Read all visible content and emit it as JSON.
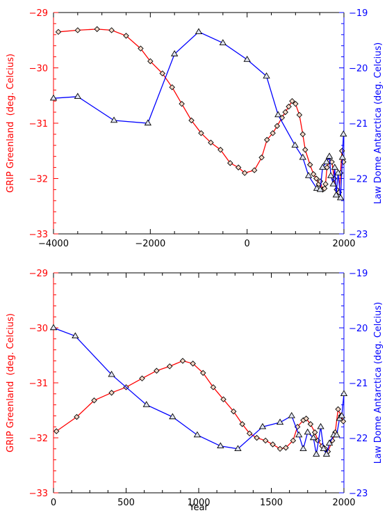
{
  "chart_data": [
    {
      "type": "line",
      "xlabel": "",
      "xlim": [
        -4000,
        2000
      ],
      "x_ticks": [
        -4000,
        -2000,
        0,
        2000
      ],
      "y_left": {
        "label": "GRIP Greenland  (deg. Celcius)",
        "lim": [
          -33,
          -29
        ],
        "ticks": [
          -33,
          -32,
          -31,
          -30,
          -29
        ],
        "color": "#ff0000"
      },
      "y_right": {
        "label": "Law Dome Antarctica (deg. Celcius)",
        "lim": [
          -23,
          -19
        ],
        "ticks": [
          -23,
          -22,
          -21,
          -20,
          -19
        ],
        "color": "#0000ff"
      },
      "series": [
        {
          "axis": "left",
          "color": "#ff0000",
          "marker": "diamond",
          "x": [
            -3900,
            -3500,
            -3100,
            -2800,
            -2500,
            -2200,
            -2000,
            -1750,
            -1550,
            -1350,
            -1150,
            -950,
            -750,
            -550,
            -350,
            -180,
            -50,
            150,
            300,
            410,
            530,
            620,
            720,
            790,
            860,
            930,
            1000,
            1080,
            1150,
            1200,
            1300,
            1370,
            1430,
            1480,
            1510,
            1560,
            1600,
            1620,
            1650,
            1700,
            1750,
            1800,
            1850,
            1900,
            1930,
            1960,
            1990
          ],
          "y": [
            -29.35,
            -29.32,
            -29.3,
            -29.32,
            -29.42,
            -29.65,
            -29.88,
            -30.1,
            -30.35,
            -30.65,
            -30.95,
            -31.18,
            -31.35,
            -31.48,
            -31.72,
            -31.8,
            -31.9,
            -31.85,
            -31.62,
            -31.3,
            -31.18,
            -31.05,
            -30.9,
            -30.8,
            -30.7,
            -30.6,
            -30.65,
            -30.85,
            -31.2,
            -31.48,
            -31.75,
            -31.92,
            -32.0,
            -32.1,
            -32.05,
            -32.2,
            -32.18,
            -32.1,
            -31.8,
            -31.68,
            -31.7,
            -32.0,
            -32.2,
            -32.25,
            -31.9,
            -31.5,
            -31.7
          ]
        },
        {
          "axis": "right",
          "color": "#0000ff",
          "marker": "triangle",
          "x": [
            -4000,
            -3500,
            -2750,
            -2050,
            -1500,
            -1000,
            -500,
            0,
            400,
            640,
            990,
            1150,
            1270,
            1440,
            1510,
            1560,
            1640,
            1700,
            1730,
            1780,
            1810,
            1840,
            1880,
            1930,
            1970,
            1990
          ],
          "y": [
            -20.55,
            -20.52,
            -20.95,
            -21.0,
            -19.75,
            -19.35,
            -19.55,
            -19.85,
            -20.15,
            -20.85,
            -21.4,
            -21.62,
            -21.95,
            -22.18,
            -22.2,
            -21.8,
            -21.7,
            -21.6,
            -21.95,
            -22.1,
            -21.8,
            -22.3,
            -21.9,
            -22.35,
            -21.62,
            -21.2
          ]
        }
      ]
    },
    {
      "type": "line",
      "xlabel": "Year",
      "xlim": [
        0,
        2000
      ],
      "x_ticks": [
        0,
        500,
        1000,
        1500,
        2000
      ],
      "y_left": {
        "label": "GRIP Greenland  (deg. Celcius)",
        "lim": [
          -33,
          -29
        ],
        "ticks": [
          -33,
          -32,
          -31,
          -30,
          -29
        ],
        "color": "#ff0000"
      },
      "y_right": {
        "label": "Law Dome Antarctica (deg. Celcius)",
        "lim": [
          -23,
          -19
        ],
        "ticks": [
          -23,
          -22,
          -21,
          -20,
          -19
        ],
        "color": "#0000ff"
      },
      "series": [
        {
          "axis": "left",
          "color": "#ff0000",
          "marker": "diamond",
          "x": [
            20,
            160,
            280,
            400,
            500,
            610,
            710,
            800,
            890,
            960,
            1030,
            1100,
            1170,
            1240,
            1300,
            1350,
            1400,
            1460,
            1510,
            1560,
            1600,
            1650,
            1680,
            1720,
            1740,
            1770,
            1800,
            1820,
            1850,
            1870,
            1890,
            1920,
            1940,
            1960,
            1980,
            1995
          ],
          "y": [
            -31.88,
            -31.62,
            -31.32,
            -31.18,
            -31.08,
            -30.92,
            -30.78,
            -30.7,
            -30.6,
            -30.65,
            -30.82,
            -31.08,
            -31.3,
            -31.52,
            -31.75,
            -31.92,
            -32.0,
            -32.05,
            -32.12,
            -32.2,
            -32.18,
            -32.05,
            -31.8,
            -31.68,
            -31.65,
            -31.75,
            -31.9,
            -32.05,
            -32.15,
            -32.2,
            -32.25,
            -32.05,
            -31.9,
            -31.48,
            -31.6,
            -31.7
          ]
        },
        {
          "axis": "right",
          "color": "#0000ff",
          "marker": "triangle",
          "x": [
            0,
            150,
            400,
            640,
            820,
            990,
            1150,
            1270,
            1440,
            1560,
            1640,
            1690,
            1720,
            1750,
            1790,
            1810,
            1840,
            1860,
            1880,
            1900,
            1930,
            1950,
            1970,
            1985,
            2000
          ],
          "y": [
            -20.0,
            -20.15,
            -20.85,
            -21.4,
            -21.62,
            -21.95,
            -22.15,
            -22.2,
            -21.8,
            -21.72,
            -21.6,
            -21.95,
            -22.2,
            -21.9,
            -22.0,
            -22.3,
            -21.8,
            -22.2,
            -22.3,
            -22.1,
            -21.95,
            -21.95,
            -21.65,
            -21.6,
            -21.2
          ]
        }
      ]
    }
  ]
}
